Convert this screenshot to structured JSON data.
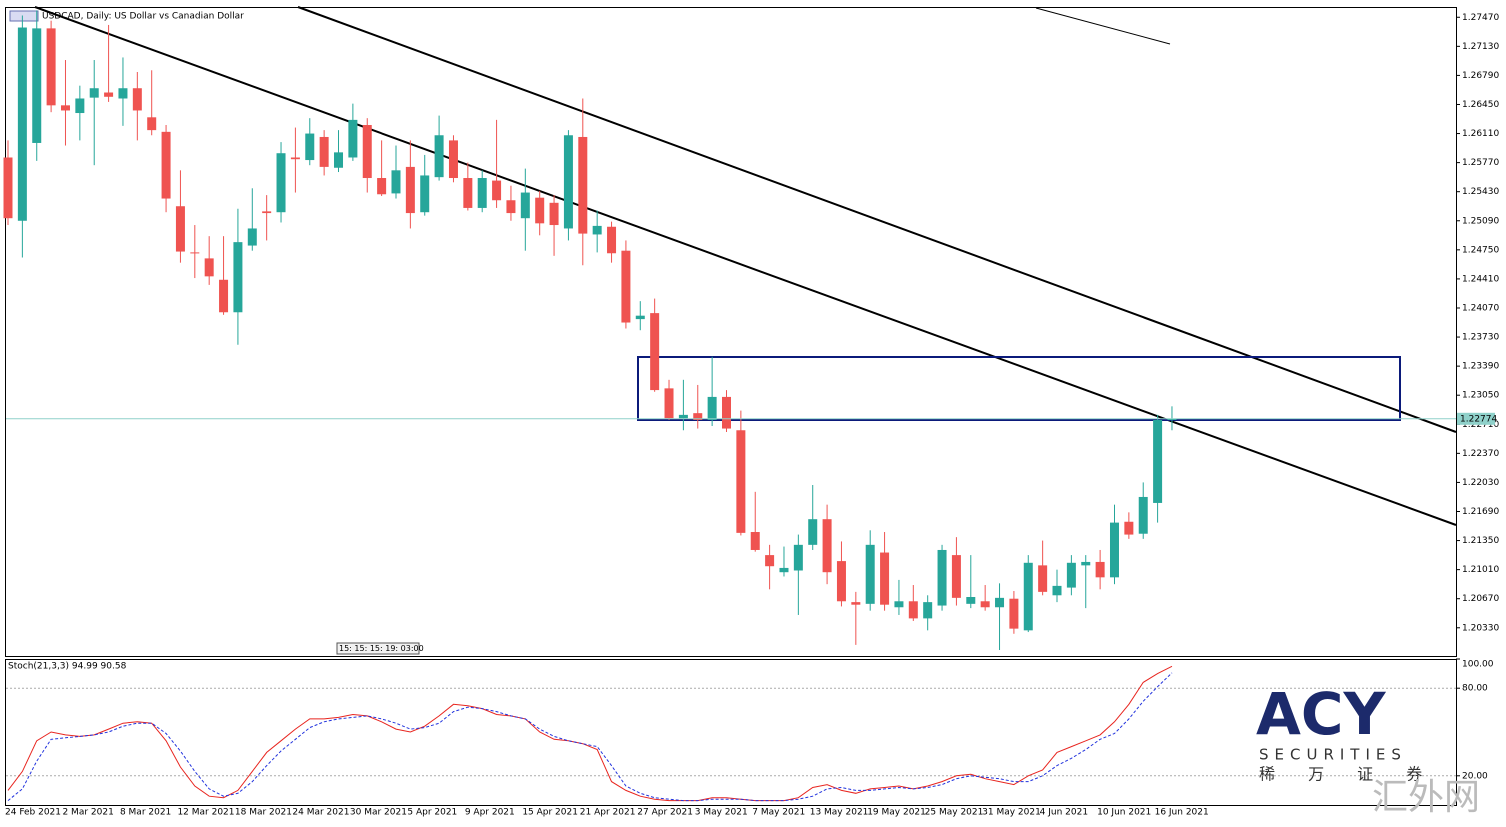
{
  "chart_data": [
    {
      "type": "candlestick",
      "title": "USDCAD, Daily:  US Dollar vs Canadian Dollar",
      "categories": [
        "24 Feb 2021",
        null,
        null,
        null,
        "2 Mar 2021",
        null,
        null,
        null,
        "8 Mar 2021",
        null,
        null,
        null,
        "12 Mar 2021",
        null,
        null,
        null,
        "18 Mar 2021",
        null,
        null,
        null,
        "24 Mar 2021",
        null,
        null,
        null,
        "30 Mar 2021",
        null,
        null,
        null,
        "5 Apr 2021",
        null,
        null,
        null,
        "9 Apr 2021",
        null,
        null,
        null,
        "15 Apr 2021",
        null,
        null,
        null,
        "21 Apr 2021",
        null,
        null,
        null,
        "27 Apr 2021",
        null,
        null,
        null,
        "3 May 2021",
        null,
        null,
        null,
        "7 May 2021",
        null,
        null,
        null,
        "13 May 2021",
        null,
        null,
        null,
        "19 May 2021",
        null,
        null,
        null,
        "25 May 2021",
        null,
        null,
        null,
        "31 May 2021",
        null,
        null,
        null,
        "4 Jun 2021",
        null,
        null,
        null,
        "10 Jun 2021",
        null,
        null,
        null,
        "16 Jun 2021",
        null
      ],
      "open": [
        1.2583,
        1.2509,
        1.26,
        1.2734,
        1.2644,
        1.2635,
        1.2653,
        1.2659,
        1.2652,
        1.2664,
        1.263,
        1.2613,
        1.2526,
        1.2472,
        1.2465,
        1.244,
        1.2402,
        1.248,
        1.252,
        1.2519,
        1.2583,
        1.258,
        1.2607,
        1.2571,
        1.2583,
        1.2621,
        1.2559,
        1.2541,
        1.2572,
        1.2519,
        1.256,
        1.2603,
        1.2559,
        1.2524,
        1.2556,
        1.2533,
        1.2512,
        1.2536,
        1.253,
        1.25,
        1.2607,
        1.2493,
        1.2502,
        1.2474,
        1.2394,
        1.2401,
        1.2313,
        1.2278,
        1.2284,
        1.2276,
        1.2303,
        1.2264,
        1.2145,
        1.2118,
        1.2098,
        1.21,
        1.213,
        1.216,
        1.2111,
        1.2063,
        1.2061,
        1.2121,
        1.2057,
        1.2064,
        1.2044,
        1.2059,
        1.2118,
        1.2061,
        1.2064,
        1.2057,
        1.2067,
        1.203,
        1.2106,
        1.2071,
        1.208,
        1.2106,
        1.211,
        1.2092,
        1.2157,
        1.2143,
        1.2179,
        1.2276
      ],
      "high": [
        1.2603,
        1.2749,
        1.2755,
        1.2743,
        1.2697,
        1.2667,
        1.2697,
        1.2738,
        1.27,
        1.2683,
        1.2685,
        1.2621,
        1.2568,
        1.2504,
        1.2491,
        1.2491,
        1.2523,
        1.2547,
        1.2539,
        1.2601,
        1.2618,
        1.2629,
        1.2615,
        1.2615,
        1.2646,
        1.2629,
        1.2603,
        1.2597,
        1.2603,
        1.2586,
        1.2632,
        1.2609,
        1.2577,
        1.2568,
        1.2627,
        1.255,
        1.257,
        1.2544,
        1.2539,
        1.2615,
        1.2652,
        1.2521,
        1.2508,
        1.2486,
        1.2415,
        1.2418,
        1.2323,
        1.2323,
        1.2317,
        1.235,
        1.2311,
        1.2287,
        1.2192,
        1.213,
        1.2128,
        1.2142,
        1.22,
        1.2177,
        1.2134,
        1.2075,
        1.2147,
        1.2145,
        1.2089,
        1.2083,
        1.2071,
        1.213,
        1.2139,
        1.2118,
        1.2083,
        1.2085,
        1.2076,
        1.2118,
        1.2135,
        1.2101,
        1.2118,
        1.2118,
        1.2124,
        1.2177,
        1.2168,
        1.2203,
        1.2282,
        1.2292
      ],
      "low": [
        1.2504,
        1.2466,
        1.2579,
        1.2636,
        1.2597,
        1.2603,
        1.2574,
        1.2648,
        1.262,
        1.2603,
        1.2609,
        1.2519,
        1.246,
        1.2442,
        1.2434,
        1.2399,
        1.2364,
        1.2474,
        1.2486,
        1.2507,
        1.2542,
        1.2574,
        1.2562,
        1.2566,
        1.2579,
        1.2542,
        1.2538,
        1.2535,
        1.25,
        1.2515,
        1.2556,
        1.2554,
        1.2521,
        1.2519,
        1.2524,
        1.2509,
        1.2474,
        1.2492,
        1.2468,
        1.2486,
        1.2457,
        1.2472,
        1.246,
        1.2383,
        1.2381,
        1.2309,
        1.2276,
        1.2264,
        1.2266,
        1.2269,
        1.2262,
        1.2141,
        1.2122,
        1.2078,
        1.2093,
        1.2048,
        1.2124,
        1.2084,
        1.2058,
        1.2013,
        1.2053,
        1.2053,
        1.2048,
        1.2041,
        1.203,
        1.2053,
        1.2059,
        1.2056,
        1.2053,
        1.2007,
        1.2026,
        1.2028,
        1.2071,
        1.2063,
        1.2071,
        1.2056,
        1.2078,
        1.2084,
        1.2137,
        1.2137,
        1.2156,
        1.2264
      ],
      "close": [
        1.2512,
        1.2735,
        1.2734,
        1.2644,
        1.2638,
        1.2652,
        1.2664,
        1.2654,
        1.2664,
        1.2638,
        1.2615,
        1.2535,
        1.2473,
        1.2471,
        1.2444,
        1.2402,
        1.2484,
        1.25,
        1.2518,
        1.2588,
        1.2581,
        1.2611,
        1.2572,
        1.2589,
        1.2627,
        1.2559,
        1.254,
        1.2568,
        1.2518,
        1.2562,
        1.2609,
        1.2559,
        1.2524,
        1.2559,
        1.2533,
        1.2518,
        1.2542,
        1.2506,
        1.2504,
        1.2609,
        1.2494,
        1.2503,
        1.2471,
        1.239,
        1.2398,
        1.2311,
        1.2278,
        1.2282,
        1.2276,
        1.2303,
        1.2266,
        1.2144,
        1.2124,
        1.2105,
        1.2103,
        1.213,
        1.216,
        1.2098,
        1.2064,
        1.206,
        1.213,
        1.206,
        1.2064,
        1.2044,
        1.2063,
        1.2124,
        1.2068,
        1.2069,
        1.2057,
        1.2068,
        1.2032,
        1.2109,
        1.2075,
        1.2082,
        1.2109,
        1.211,
        1.2092,
        1.2156,
        1.2142,
        1.2186,
        1.2276,
        1.22774
      ],
      "up_color": "#26a69a",
      "down_color": "#ef5350",
      "current_price": 1.22774,
      "current_price_color": "#8fd1ca",
      "ylim": [
        1.2,
        1.2759
      ],
      "yticks": [
        {
          "value": 1.2747,
          "label": "1.27470"
        },
        {
          "value": 1.2713,
          "label": "1.27130"
        },
        {
          "value": 1.2679,
          "label": "1.26790"
        },
        {
          "value": 1.2645,
          "label": "1.26450"
        },
        {
          "value": 1.2611,
          "label": "1.26110"
        },
        {
          "value": 1.2577,
          "label": "1.25770"
        },
        {
          "value": 1.2543,
          "label": "1.25430"
        },
        {
          "value": 1.2509,
          "label": "1.25090"
        },
        {
          "value": 1.2475,
          "label": "1.24750"
        },
        {
          "value": 1.2441,
          "label": "1.24410"
        },
        {
          "value": 1.2407,
          "label": "1.24070"
        },
        {
          "value": 1.2373,
          "label": "1.23730"
        },
        {
          "value": 1.2339,
          "label": "1.23390"
        },
        {
          "value": 1.2305,
          "label": "1.23050"
        },
        {
          "value": 1.2271,
          "label": "1.22710"
        },
        {
          "value": 1.2237,
          "label": "1.22370"
        },
        {
          "value": 1.2203,
          "label": "1.22030"
        },
        {
          "value": 1.2169,
          "label": "1.21690"
        },
        {
          "value": 1.2135,
          "label": "1.21350"
        },
        {
          "value": 1.2101,
          "label": "1.21010"
        },
        {
          "value": 1.2067,
          "label": "1.20670"
        },
        {
          "value": 1.2033,
          "label": "1.20330"
        }
      ],
      "timer": "15: 15: 15: 19: 03:00"
    },
    {
      "type": "line",
      "title": "Stoch(21,3,3) 94.99 90.58",
      "series": [
        {
          "color": "#e8251f",
          "values": [
            10,
            23,
            44,
            50,
            48,
            47,
            48,
            52,
            56,
            57,
            56,
            44,
            26,
            13,
            6,
            5,
            10,
            23,
            36,
            44,
            52,
            59,
            59,
            60,
            62,
            61,
            57,
            52,
            50,
            54,
            61,
            69,
            68,
            66,
            62,
            61,
            59,
            50,
            45,
            44,
            42,
            38,
            16,
            10,
            6,
            4,
            3,
            3,
            3,
            5,
            5,
            4,
            3,
            3,
            3,
            5,
            12,
            14,
            10,
            8,
            11,
            12,
            13,
            11,
            13,
            16,
            20,
            21,
            18,
            16,
            14,
            20,
            24,
            36,
            40,
            44,
            48,
            57,
            69,
            84,
            90,
            94.99
          ]
        },
        {
          "color": "#2233dd",
          "dashed": true,
          "values": [
            3,
            11,
            30,
            45,
            46,
            47,
            48,
            50,
            54,
            56,
            56,
            49,
            37,
            23,
            11,
            6,
            8,
            16,
            27,
            37,
            45,
            53,
            57,
            59,
            60,
            61,
            59,
            56,
            52,
            53,
            56,
            64,
            67,
            66,
            64,
            61,
            59,
            52,
            47,
            44,
            42,
            40,
            27,
            13,
            8,
            5,
            4,
            3,
            3,
            4,
            4,
            4,
            3,
            3,
            3,
            4,
            6,
            11,
            12,
            10,
            10,
            11,
            12,
            11,
            12,
            14,
            18,
            20,
            19,
            18,
            16,
            16,
            20,
            27,
            32,
            38,
            45,
            49,
            59,
            71,
            81,
            90.58
          ]
        }
      ],
      "ylim": [
        0,
        100
      ],
      "yticks": [
        {
          "value": 100,
          "label": "100.00"
        },
        {
          "value": 80,
          "label": "80.00"
        },
        {
          "value": 20,
          "label": "20.00"
        }
      ],
      "levels": [
        80,
        20
      ]
    }
  ],
  "logo": {
    "name": "ACY",
    "sub": "SECURITIES",
    "chinese": "稀 万 证 券"
  },
  "watermark": "汇外网"
}
